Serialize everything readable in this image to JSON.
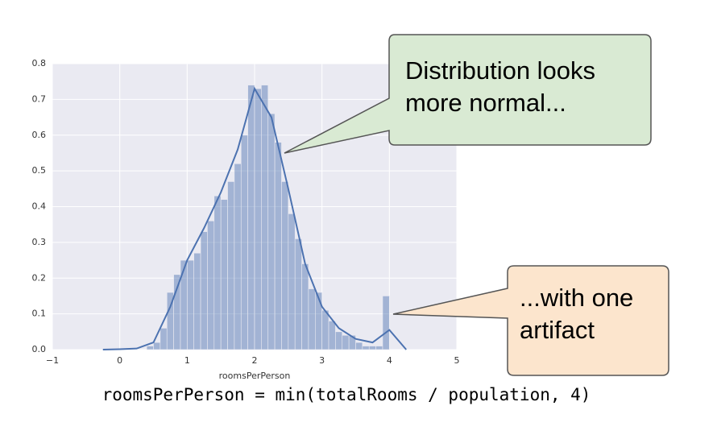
{
  "chart_data": {
    "type": "histogram",
    "xlabel": "roomsPerPerson",
    "bins": [
      0.4,
      0.5,
      0.6,
      0.7,
      0.8,
      0.9,
      1.0,
      1.1,
      1.2,
      1.3,
      1.4,
      1.5,
      1.6,
      1.7,
      1.8,
      1.9,
      2.0,
      2.1,
      2.2,
      2.3,
      2.4,
      2.5,
      2.6,
      2.7,
      2.8,
      2.9,
      3.0,
      3.1,
      3.2,
      3.3,
      3.4,
      3.5,
      3.6,
      3.7,
      3.8,
      3.9,
      4.0
    ],
    "values": [
      0.01,
      0.02,
      0.06,
      0.16,
      0.21,
      0.25,
      0.25,
      0.27,
      0.33,
      0.36,
      0.43,
      0.42,
      0.47,
      0.52,
      0.6,
      0.74,
      0.73,
      0.74,
      0.66,
      0.58,
      0.47,
      0.38,
      0.31,
      0.24,
      0.17,
      0.16,
      0.11,
      0.08,
      0.05,
      0.04,
      0.04,
      0.02,
      0.01,
      0.01,
      0.01,
      0.15
    ],
    "color": "#4c72b0",
    "kde": {
      "x": [
        -0.25,
        0,
        0.25,
        0.5,
        0.75,
        1.0,
        1.25,
        1.5,
        1.75,
        2.0,
        2.25,
        2.5,
        2.75,
        3.0,
        3.25,
        3.5,
        3.75,
        4.0,
        4.25
      ],
      "values": [
        0,
        0.001,
        0.003,
        0.02,
        0.12,
        0.25,
        0.34,
        0.44,
        0.56,
        0.73,
        0.65,
        0.45,
        0.24,
        0.12,
        0.06,
        0.03,
        0.02,
        0.055,
        0
      ]
    },
    "xlim": [
      -1,
      5
    ],
    "xticks": [
      {
        "value": -1,
        "label": "−1"
      },
      0,
      1,
      2,
      3,
      4,
      5
    ],
    "ylim": [
      0,
      0.8
    ],
    "yticks": [
      {
        "value": 0,
        "label": "0.0"
      },
      0.1,
      0.2,
      0.3,
      0.4,
      0.5,
      0.6,
      0.7,
      0.8
    ],
    "grid": true,
    "caption": "roomsPerPerson = min(totalRooms / population, 4)",
    "annotations": [
      "Distribution looks more normal...",
      "...with one artifact"
    ]
  }
}
